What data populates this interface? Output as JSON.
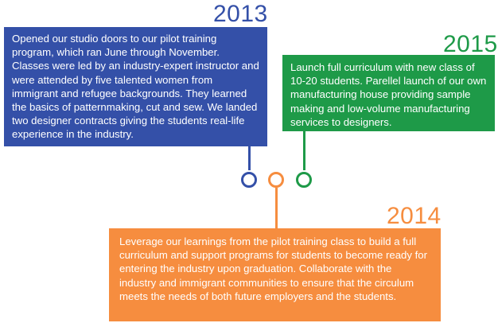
{
  "timeline": {
    "entries": [
      {
        "year": "2013",
        "text": "Opened our studio doors to our pilot training program, which ran June through November. Classes were led by an industry-expert instructor and were attended by five talented women from immigrant and refugee backgrounds.  They learned the basics of patternmaking, cut and sew.   We landed two designer contracts giving the students real-life experience in the industry.",
        "color": "#3450a8"
      },
      {
        "year": "2015",
        "text": "Launch full curriculum with new class of 10-20 students.  Parellel launch of our own manufacturing house providing sample making and low-volume manufacturing services to designers.",
        "color": "#1e9a48"
      },
      {
        "year": "2014",
        "text": "Leverage our learnings from the pilot training class to build a full curriculum and support programs for students to become ready for entering the industry upon graduation.  Collaborate with the industry and immigrant communities to ensure that the circulum meets the needs of both future employers and the students.",
        "color": "#f68d3f"
      }
    ]
  }
}
